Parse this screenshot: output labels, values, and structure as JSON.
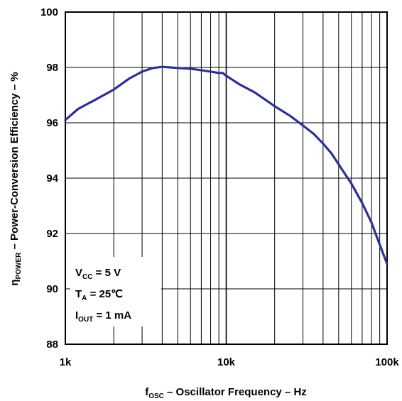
{
  "chart_data": {
    "type": "line",
    "title": "",
    "x_scale": "log",
    "xlim": [
      1000,
      100000
    ],
    "ylim": [
      88,
      100
    ],
    "grid": true,
    "x_tick_labels": [
      "1k",
      "10k",
      "100k"
    ],
    "y_tick_labels": [
      "100",
      "98",
      "96",
      "94",
      "92",
      "90",
      "88"
    ],
    "xlabel": {
      "main": "f",
      "sub": "OSC",
      "rest": " – Oscillator Frequency – Hz"
    },
    "ylabel": {
      "main": "η",
      "sub": "POWER",
      "rest": "  – Power-Conversion Efficiency – %"
    },
    "annotations": [
      {
        "main": "V",
        "sub": "CC",
        "rest": " = 5 V"
      },
      {
        "main": "T",
        "sub": "A",
        "rest": " = 25℃"
      },
      {
        "main": "I",
        "sub": "OUT",
        "rest": " = 1 mA"
      }
    ],
    "series": [
      {
        "color": "#2e3192",
        "x": [
          1000,
          1200,
          1500,
          2000,
          2500,
          3000,
          3500,
          4000,
          4500,
          5000,
          6000,
          7000,
          8000,
          9000,
          9500,
          10000,
          12000,
          15000,
          20000,
          25000,
          30000,
          35000,
          40000,
          45000,
          50000,
          60000,
          70000,
          80000,
          90000,
          100000
        ],
        "y": [
          96.1,
          96.5,
          96.8,
          97.2,
          97.6,
          97.85,
          97.98,
          98.02,
          98.0,
          97.98,
          97.95,
          97.9,
          97.85,
          97.8,
          97.8,
          97.7,
          97.4,
          97.1,
          96.6,
          96.25,
          95.9,
          95.6,
          95.25,
          94.9,
          94.5,
          93.8,
          93.1,
          92.4,
          91.6,
          90.9
        ]
      }
    ]
  }
}
